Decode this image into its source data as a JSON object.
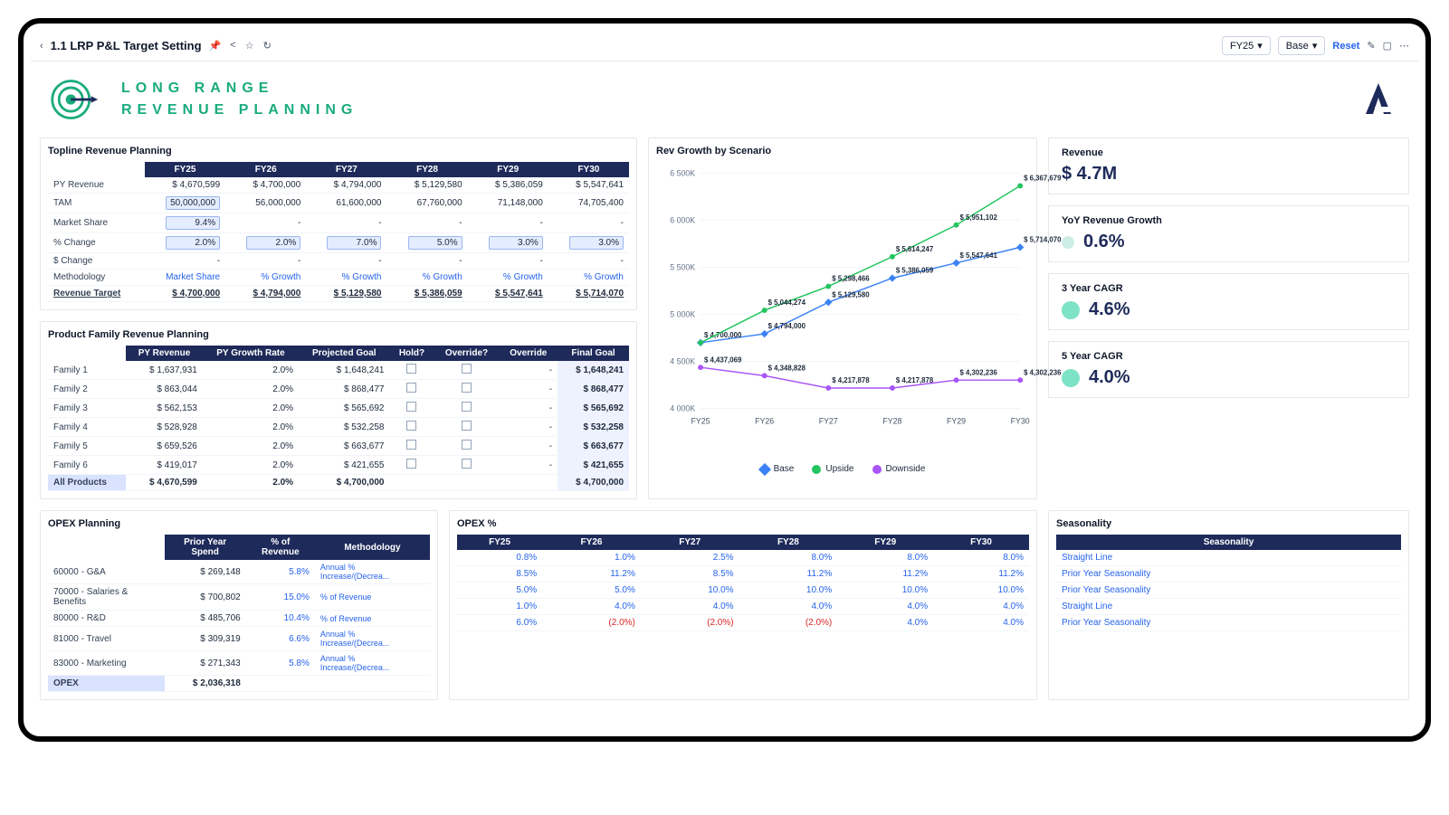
{
  "toolbar": {
    "back_icon": "‹",
    "title": "1.1 LRP P&L Target Setting",
    "fy_selector": "FY25",
    "scenario_selector": "Base",
    "reset": "Reset"
  },
  "banner": {
    "line1": "LONG RANGE",
    "line2": "REVENUE PLANNING",
    "accent": "#1aab7e"
  },
  "topline": {
    "title": "Topline Revenue Planning",
    "years": [
      "FY25",
      "FY26",
      "FY27",
      "FY28",
      "FY29",
      "FY30"
    ],
    "rows": {
      "py_revenue": {
        "label": "PY Revenue",
        "vals": [
          "$ 4,670,599",
          "$ 4,700,000",
          "$ 4,794,000",
          "$ 5,129,580",
          "$ 5,386,059",
          "$ 5,547,641"
        ]
      },
      "tam": {
        "label": "TAM",
        "vals": [
          "50,000,000",
          "56,000,000",
          "61,600,000",
          "67,760,000",
          "71,148,000",
          "74,705,400"
        ],
        "first_input": true
      },
      "mkt_share": {
        "label": "Market Share",
        "vals": [
          "9.4%",
          "-",
          "-",
          "-",
          "-",
          "-"
        ],
        "first_input": true
      },
      "pct_change": {
        "label": "% Change",
        "vals": [
          "2.0%",
          "2.0%",
          "7.0%",
          "5.0%",
          "3.0%",
          "3.0%"
        ],
        "all_input": true
      },
      "dollar_change": {
        "label": "$ Change",
        "vals": [
          "-",
          "-",
          "-",
          "-",
          "-",
          "-"
        ]
      },
      "methodology": {
        "label": "Methodology",
        "vals": [
          "Market Share",
          "% Growth",
          "% Growth",
          "% Growth",
          "% Growth",
          "% Growth"
        ],
        "blue": true
      },
      "rev_target": {
        "label": "Revenue Target",
        "vals": [
          "$ 4,700,000",
          "$ 4,794,000",
          "$ 5,129,580",
          "$ 5,386,059",
          "$ 5,547,641",
          "$ 5,714,070"
        ],
        "bold": true
      }
    }
  },
  "product_family": {
    "title": "Product Family Revenue Planning",
    "headers": [
      "",
      "PY Revenue",
      "PY Growth Rate",
      "Projected Goal",
      "Hold?",
      "Override?",
      "Override",
      "Final Goal"
    ],
    "rows": [
      {
        "label": "Family 1",
        "py": "$ 1,637,931",
        "gr": "2.0%",
        "proj": "$ 1,648,241",
        "ov": "-",
        "final": "$ 1,648,241"
      },
      {
        "label": "Family 2",
        "py": "$ 863,044",
        "gr": "2.0%",
        "proj": "$ 868,477",
        "ov": "-",
        "final": "$ 868,477"
      },
      {
        "label": "Family 3",
        "py": "$ 562,153",
        "gr": "2.0%",
        "proj": "$ 565,692",
        "ov": "-",
        "final": "$ 565,692"
      },
      {
        "label": "Family 4",
        "py": "$ 528,928",
        "gr": "2.0%",
        "proj": "$ 532,258",
        "ov": "-",
        "final": "$ 532,258"
      },
      {
        "label": "Family 5",
        "py": "$ 659,526",
        "gr": "2.0%",
        "proj": "$ 663,677",
        "ov": "-",
        "final": "$ 663,677"
      },
      {
        "label": "Family 6",
        "py": "$ 419,017",
        "gr": "2.0%",
        "proj": "$ 421,655",
        "ov": "-",
        "final": "$ 421,655"
      }
    ],
    "total": {
      "label": "All Products",
      "py": "$ 4,670,599",
      "gr": "2.0%",
      "proj": "$ 4,700,000",
      "final": "$ 4,700,000"
    }
  },
  "chart": {
    "title": "Rev Growth by Scenario",
    "x_labels": [
      "FY25",
      "FY26",
      "FY27",
      "FY28",
      "FY29",
      "FY30"
    ],
    "y_ticks": [
      "4 000K",
      "4 500K",
      "5 000K",
      "5 500K",
      "6 000K",
      "6 500K"
    ],
    "ylim": [
      4000000,
      6500000
    ],
    "series": {
      "base": {
        "label": "Base",
        "color": "#3b82f6",
        "vals": [
          4700000,
          4794000,
          5129580,
          5386059,
          5547641,
          5714070
        ],
        "pt_labels": [
          "$ 4,700,000",
          "$ 4,794,000",
          "$ 5,129,580",
          "$ 5,386,059",
          "$ 5,547,641",
          "$ 5,714,070"
        ]
      },
      "upside": {
        "label": "Upside",
        "color": "#22c55e",
        "vals": [
          4700000,
          5044274,
          5298466,
          5614247,
          5951102,
          6367679
        ],
        "pt_labels": [
          "",
          "$ 5,044,274",
          "$ 5,298,466",
          "$ 5,614,247",
          "$ 5,951,102",
          "$ 6,367,679"
        ]
      },
      "downside": {
        "label": "Downside",
        "color": "#a855f7",
        "vals": [
          4437069,
          4348828,
          4217878,
          4217878,
          4302236,
          4302236
        ],
        "pt_labels": [
          "$ 4,437,069",
          "$ 4,348,828",
          "$ 4,217,878",
          "$ 4,217,878",
          "$ 4,302,236",
          "$ 4,302,236"
        ]
      }
    }
  },
  "kpis": {
    "revenue": {
      "label": "Revenue",
      "val": "$ 4.7M"
    },
    "yoy": {
      "label": "YoY Revenue Growth",
      "val": "0.6%"
    },
    "cagr3": {
      "label": "3 Year CAGR",
      "val": "4.6%"
    },
    "cagr5": {
      "label": "5 Year CAGR",
      "val": "4.0%"
    }
  },
  "opex_plan": {
    "title": "OPEX Planning",
    "headers": [
      "",
      "Prior Year Spend",
      "% of Revenue",
      "Methodology"
    ],
    "rows": [
      {
        "label": "60000 - G&A",
        "spend": "$ 269,148",
        "pct": "5.8%",
        "meth": "Annual % Increase/(Decrea..."
      },
      {
        "label": "70000 - Salaries & Benefits",
        "spend": "$ 700,802",
        "pct": "15.0%",
        "meth": "% of Revenue"
      },
      {
        "label": "80000 - R&D",
        "spend": "$ 485,706",
        "pct": "10.4%",
        "meth": "% of Revenue"
      },
      {
        "label": "81000 - Travel",
        "spend": "$ 309,319",
        "pct": "6.6%",
        "meth": "Annual % Increase/(Decrea..."
      },
      {
        "label": "83000 - Marketing",
        "spend": "$ 271,343",
        "pct": "5.8%",
        "meth": "Annual % Increase/(Decrea..."
      }
    ],
    "total": {
      "label": "OPEX",
      "spend": "$ 2,036,318"
    }
  },
  "opex_pct": {
    "title": "OPEX %",
    "headers": [
      "FY25",
      "FY26",
      "FY27",
      "FY28",
      "FY29",
      "FY30"
    ],
    "rows": [
      [
        "0.8%",
        "1.0%",
        "2.5%",
        "8.0%",
        "8.0%",
        "8.0%"
      ],
      [
        "8.5%",
        "11.2%",
        "8.5%",
        "11.2%",
        "11.2%",
        "11.2%"
      ],
      [
        "5.0%",
        "5.0%",
        "10.0%",
        "10.0%",
        "10.0%",
        "10.0%"
      ],
      [
        "1.0%",
        "4.0%",
        "4.0%",
        "4.0%",
        "4.0%",
        "4.0%"
      ],
      [
        "6.0%",
        "(2.0%)",
        "(2.0%)",
        "(2.0%)",
        "4.0%",
        "4.0%"
      ]
    ]
  },
  "seasonality": {
    "title": "Seasonality",
    "header": "Seasonality",
    "rows": [
      "Straight Line",
      "Prior Year Seasonality",
      "Prior Year Seasonality",
      "Straight Line",
      "Prior Year Seasonality"
    ]
  },
  "colors": {
    "header_dark": "#1e2a5a",
    "input_bg": "#e4ecff",
    "input_border": "#9bb5f2"
  }
}
